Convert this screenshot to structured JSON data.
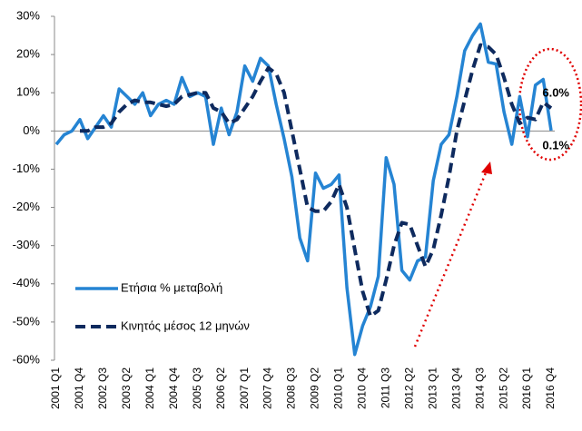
{
  "chart_data": {
    "type": "line",
    "categories": [
      "2001 Q1",
      null,
      null,
      "2001 Q4",
      null,
      null,
      "2002 Q3",
      null,
      null,
      "2003 Q2",
      null,
      null,
      "2004 Q1",
      null,
      null,
      "2004 Q4",
      null,
      null,
      "2005 Q3",
      null,
      null,
      "2006 Q2",
      null,
      null,
      "2007 Q1",
      null,
      null,
      "2007 Q4",
      null,
      null,
      "2008 Q3",
      null,
      null,
      "2009 Q2",
      null,
      null,
      "2010 Q1",
      null,
      null,
      "2010 Q4",
      null,
      null,
      "2011 Q3",
      null,
      null,
      "2012 Q2",
      null,
      null,
      "2013 Q1",
      null,
      null,
      "2013 Q4",
      null,
      null,
      "2014 Q3",
      null,
      null,
      "2015 Q2",
      null,
      null,
      "2016 Q1",
      null,
      null,
      "2016 Q4"
    ],
    "series": [
      {
        "name": "Ετήσια % μεταβολή",
        "color": "#2584d3",
        "dashed": false,
        "values": [
          -3.5,
          -1,
          0,
          3,
          -2,
          1,
          4,
          1,
          11,
          9,
          7,
          10,
          4,
          7,
          8,
          7,
          14,
          9,
          10,
          9,
          -3.5,
          6,
          -1,
          5,
          17,
          13,
          19,
          17,
          7,
          -2,
          -12,
          -28,
          -34,
          -11,
          -15,
          -14,
          -11.5,
          -41,
          -58.5,
          -51,
          -46,
          -38,
          -7,
          -14,
          -36.5,
          -39,
          -34,
          -33,
          -13,
          -3.5,
          -1,
          9,
          21,
          25,
          28,
          18,
          17.5,
          5,
          -3.5,
          9,
          -1.5,
          12,
          13.5,
          0.1
        ]
      },
      {
        "name": "Κινητός μέσος 12 μηνών",
        "color": "#0e2a5e",
        "dashed": true,
        "values": [
          null,
          null,
          null,
          0,
          0,
          1,
          1,
          2,
          5,
          7,
          8,
          7.5,
          7.5,
          7,
          6.5,
          7,
          9,
          9.5,
          10,
          10,
          6,
          5,
          2,
          3,
          6,
          9,
          13,
          16.5,
          15,
          10,
          0,
          -10,
          -20,
          -21,
          -21,
          -18.5,
          -14,
          -20,
          -31,
          -42,
          -48.5,
          -47,
          -39,
          -30,
          -24,
          -24.5,
          -30,
          -35.5,
          -31,
          -22,
          -12,
          0,
          8,
          16,
          22.5,
          22,
          20,
          14,
          7,
          2,
          3.5,
          3,
          7.5,
          6.0
        ]
      }
    ],
    "ylim": [
      -60,
      30
    ],
    "yticks": [
      {
        "value": -60,
        "label": "-60%"
      },
      {
        "value": -50,
        "label": "-50%"
      },
      {
        "value": -40,
        "label": "-40%"
      },
      {
        "value": -30,
        "label": "-30%"
      },
      {
        "value": -20,
        "label": "-20%"
      },
      {
        "value": -10,
        "label": "-10%"
      },
      {
        "value": 0,
        "label": "0%"
      },
      {
        "value": 10,
        "label": "10%"
      },
      {
        "value": 20,
        "label": "20%"
      },
      {
        "value": 30,
        "label": "30%"
      }
    ],
    "annotations": [
      "6.0%",
      "0.1%"
    ],
    "legend": "lower left",
    "grid": false
  }
}
